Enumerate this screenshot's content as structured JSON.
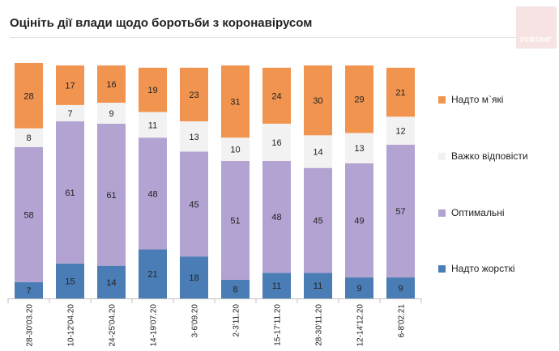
{
  "title": "Оцініть дії влади щодо боротьби з коронавірусом",
  "logo_text": "РЕЙТИНГ",
  "chart_data": {
    "type": "bar",
    "stacked": true,
    "categories": [
      "28-30'03.20",
      "10-12'04.20",
      "24-25'04.20",
      "14-19'07.20",
      "3-6'09.20",
      "2-3'11.20",
      "15-17'11.20",
      "28-30'11.20",
      "12-14'12.20",
      "6-8'02.21"
    ],
    "series": [
      {
        "name": "Надто жорсткі",
        "color": "#4a7db5",
        "values": [
          7,
          15,
          14,
          21,
          18,
          8,
          11,
          11,
          9,
          9
        ]
      },
      {
        "name": "Оптимальні",
        "color": "#b3a3d2",
        "values": [
          58,
          61,
          61,
          48,
          45,
          51,
          48,
          45,
          49,
          57
        ]
      },
      {
        "name": "Важко відповісти",
        "color": "#f2f2f2",
        "values": [
          8,
          7,
          9,
          11,
          13,
          10,
          16,
          14,
          13,
          12
        ]
      },
      {
        "name": "Надто м`які",
        "color": "#f0944f",
        "values": [
          28,
          17,
          16,
          19,
          23,
          31,
          24,
          30,
          29,
          21
        ]
      }
    ],
    "legend_order": [
      "Надто м`які",
      "Важко відповісти",
      "Оптимальні",
      "Надто жорсткі"
    ],
    "legend_position": "right",
    "grid": false,
    "ylim": [
      0,
      101
    ]
  }
}
